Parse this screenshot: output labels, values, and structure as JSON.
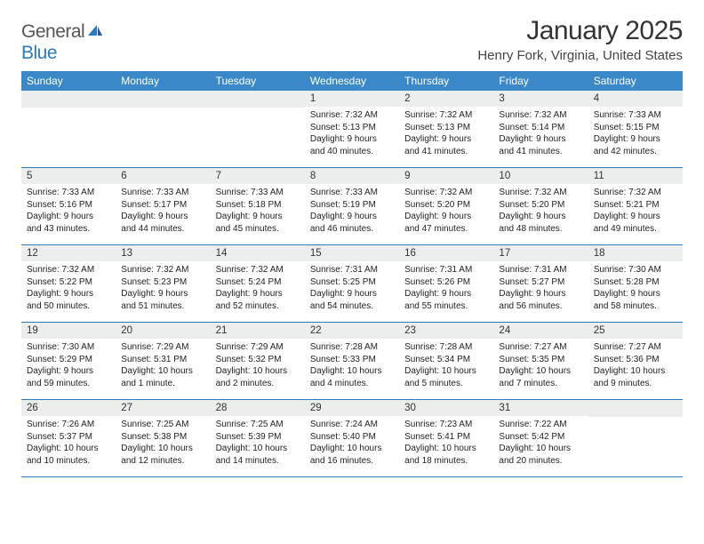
{
  "brand": {
    "general": "General",
    "blue": "Blue"
  },
  "title": "January 2025",
  "location": "Henry Fork, Virginia, United States",
  "colors": {
    "header_bg": "#3b88c8",
    "row_divider": "#2b7bbd",
    "daynum_bg": "#eceded",
    "text": "#222222",
    "brand_blue": "#2b7bbd"
  },
  "day_names": [
    "Sunday",
    "Monday",
    "Tuesday",
    "Wednesday",
    "Thursday",
    "Friday",
    "Saturday"
  ],
  "layout": {
    "columns": 7,
    "rows": 5,
    "first_weekday_index": 3
  },
  "days": [
    {
      "n": 1,
      "sunrise": "7:32 AM",
      "sunset": "5:13 PM",
      "daylight": "9 hours and 40 minutes."
    },
    {
      "n": 2,
      "sunrise": "7:32 AM",
      "sunset": "5:13 PM",
      "daylight": "9 hours and 41 minutes."
    },
    {
      "n": 3,
      "sunrise": "7:32 AM",
      "sunset": "5:14 PM",
      "daylight": "9 hours and 41 minutes."
    },
    {
      "n": 4,
      "sunrise": "7:33 AM",
      "sunset": "5:15 PM",
      "daylight": "9 hours and 42 minutes."
    },
    {
      "n": 5,
      "sunrise": "7:33 AM",
      "sunset": "5:16 PM",
      "daylight": "9 hours and 43 minutes."
    },
    {
      "n": 6,
      "sunrise": "7:33 AM",
      "sunset": "5:17 PM",
      "daylight": "9 hours and 44 minutes."
    },
    {
      "n": 7,
      "sunrise": "7:33 AM",
      "sunset": "5:18 PM",
      "daylight": "9 hours and 45 minutes."
    },
    {
      "n": 8,
      "sunrise": "7:33 AM",
      "sunset": "5:19 PM",
      "daylight": "9 hours and 46 minutes."
    },
    {
      "n": 9,
      "sunrise": "7:32 AM",
      "sunset": "5:20 PM",
      "daylight": "9 hours and 47 minutes."
    },
    {
      "n": 10,
      "sunrise": "7:32 AM",
      "sunset": "5:20 PM",
      "daylight": "9 hours and 48 minutes."
    },
    {
      "n": 11,
      "sunrise": "7:32 AM",
      "sunset": "5:21 PM",
      "daylight": "9 hours and 49 minutes."
    },
    {
      "n": 12,
      "sunrise": "7:32 AM",
      "sunset": "5:22 PM",
      "daylight": "9 hours and 50 minutes."
    },
    {
      "n": 13,
      "sunrise": "7:32 AM",
      "sunset": "5:23 PM",
      "daylight": "9 hours and 51 minutes."
    },
    {
      "n": 14,
      "sunrise": "7:32 AM",
      "sunset": "5:24 PM",
      "daylight": "9 hours and 52 minutes."
    },
    {
      "n": 15,
      "sunrise": "7:31 AM",
      "sunset": "5:25 PM",
      "daylight": "9 hours and 54 minutes."
    },
    {
      "n": 16,
      "sunrise": "7:31 AM",
      "sunset": "5:26 PM",
      "daylight": "9 hours and 55 minutes."
    },
    {
      "n": 17,
      "sunrise": "7:31 AM",
      "sunset": "5:27 PM",
      "daylight": "9 hours and 56 minutes."
    },
    {
      "n": 18,
      "sunrise": "7:30 AM",
      "sunset": "5:28 PM",
      "daylight": "9 hours and 58 minutes."
    },
    {
      "n": 19,
      "sunrise": "7:30 AM",
      "sunset": "5:29 PM",
      "daylight": "9 hours and 59 minutes."
    },
    {
      "n": 20,
      "sunrise": "7:29 AM",
      "sunset": "5:31 PM",
      "daylight": "10 hours and 1 minute."
    },
    {
      "n": 21,
      "sunrise": "7:29 AM",
      "sunset": "5:32 PM",
      "daylight": "10 hours and 2 minutes."
    },
    {
      "n": 22,
      "sunrise": "7:28 AM",
      "sunset": "5:33 PM",
      "daylight": "10 hours and 4 minutes."
    },
    {
      "n": 23,
      "sunrise": "7:28 AM",
      "sunset": "5:34 PM",
      "daylight": "10 hours and 5 minutes."
    },
    {
      "n": 24,
      "sunrise": "7:27 AM",
      "sunset": "5:35 PM",
      "daylight": "10 hours and 7 minutes."
    },
    {
      "n": 25,
      "sunrise": "7:27 AM",
      "sunset": "5:36 PM",
      "daylight": "10 hours and 9 minutes."
    },
    {
      "n": 26,
      "sunrise": "7:26 AM",
      "sunset": "5:37 PM",
      "daylight": "10 hours and 10 minutes."
    },
    {
      "n": 27,
      "sunrise": "7:25 AM",
      "sunset": "5:38 PM",
      "daylight": "10 hours and 12 minutes."
    },
    {
      "n": 28,
      "sunrise": "7:25 AM",
      "sunset": "5:39 PM",
      "daylight": "10 hours and 14 minutes."
    },
    {
      "n": 29,
      "sunrise": "7:24 AM",
      "sunset": "5:40 PM",
      "daylight": "10 hours and 16 minutes."
    },
    {
      "n": 30,
      "sunrise": "7:23 AM",
      "sunset": "5:41 PM",
      "daylight": "10 hours and 18 minutes."
    },
    {
      "n": 31,
      "sunrise": "7:22 AM",
      "sunset": "5:42 PM",
      "daylight": "10 hours and 20 minutes."
    }
  ],
  "labels": {
    "sunrise": "Sunrise:",
    "sunset": "Sunset:",
    "daylight": "Daylight:"
  }
}
